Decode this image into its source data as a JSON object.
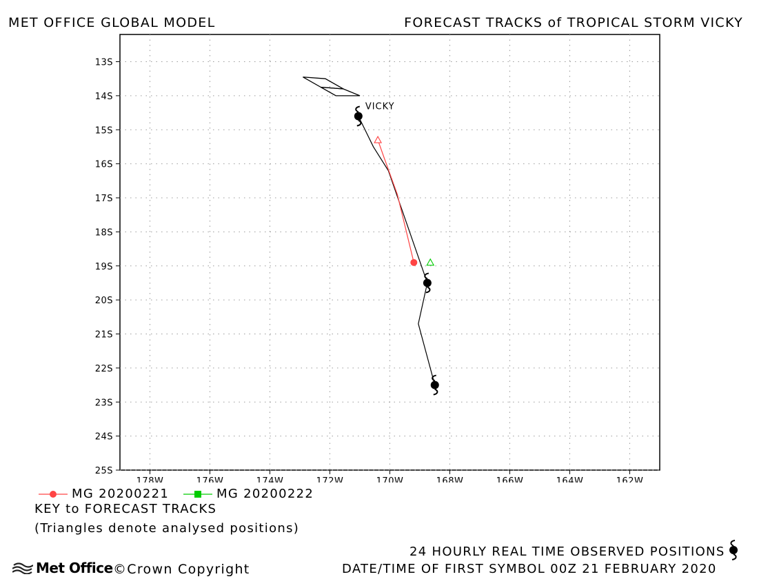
{
  "header": {
    "left_title": "MET OFFICE GLOBAL MODEL",
    "right_title": "FORECAST TRACKS of TROPICAL STORM VICKY"
  },
  "map": {
    "lon_range": [
      -179,
      -161
    ],
    "lat_range": [
      -25,
      -12.2
    ],
    "grid": "dotted",
    "lon_ticks": [
      {
        "value": -178,
        "label": "178W"
      },
      {
        "value": -176,
        "label": "176W"
      },
      {
        "value": -174,
        "label": "174W"
      },
      {
        "value": -172,
        "label": "172W"
      },
      {
        "value": -170,
        "label": "170W"
      },
      {
        "value": -168,
        "label": "168W"
      },
      {
        "value": -166,
        "label": "166W"
      },
      {
        "value": -164,
        "label": "164W"
      },
      {
        "value": -162,
        "label": "162W"
      }
    ],
    "lat_ticks": [
      {
        "value": -13,
        "label": "13S"
      },
      {
        "value": -14,
        "label": "14S"
      },
      {
        "value": -15,
        "label": "15S"
      },
      {
        "value": -16,
        "label": "16S"
      },
      {
        "value": -17,
        "label": "17S"
      },
      {
        "value": -18,
        "label": "18S"
      },
      {
        "value": -19,
        "label": "19S"
      },
      {
        "value": -20,
        "label": "20S"
      },
      {
        "value": -21,
        "label": "21S"
      },
      {
        "value": -22,
        "label": "22S"
      },
      {
        "value": -23,
        "label": "23S"
      },
      {
        "value": -24,
        "label": "24S"
      },
      {
        "value": -25,
        "label": "25S"
      }
    ],
    "storm_label": "VICKY",
    "coastline": [
      [
        -172.9,
        -13.45
      ],
      [
        -172.15,
        -13.5
      ],
      [
        -171.55,
        -13.8
      ],
      [
        -172.3,
        -13.75
      ],
      [
        -172.9,
        -13.45
      ]
    ],
    "coastline2": [
      [
        -172.3,
        -13.75
      ],
      [
        -171.55,
        -13.8
      ],
      [
        -171.0,
        -14.0
      ],
      [
        -171.8,
        -14.0
      ],
      [
        -172.3,
        -13.75
      ]
    ],
    "observed_track": [
      [
        -171.05,
        -14.6
      ],
      [
        -170.55,
        -15.5
      ],
      [
        -170.05,
        -16.2
      ],
      [
        -168.75,
        -19.5
      ],
      [
        -169.05,
        -20.7
      ],
      [
        -168.5,
        -22.5
      ]
    ],
    "observed_positions": [
      [
        -171.05,
        -14.6
      ],
      [
        -168.75,
        -19.5
      ],
      [
        -168.5,
        -22.5
      ]
    ],
    "forecast_tracks": [
      {
        "name": "MG 20200221",
        "color": "#ff4444",
        "marker": "circle",
        "analysed": [
          -170.4,
          -15.3
        ],
        "points": [
          [
            -170.4,
            -15.3
          ],
          [
            -170.2,
            -15.8
          ],
          [
            -169.75,
            -16.9
          ],
          [
            -169.2,
            -18.9
          ]
        ]
      },
      {
        "name": "MG 20200222",
        "color": "#00cc00",
        "marker": "square",
        "analysed": [
          -168.65,
          -18.9
        ],
        "points": []
      }
    ]
  },
  "legend": {
    "entries": [
      {
        "label": "MG 20200221",
        "color": "#ff4444",
        "marker": "circle"
      },
      {
        "label": "MG 20200222",
        "color": "#00cc00",
        "marker": "square"
      }
    ],
    "key_title": "KEY to FORECAST TRACKS",
    "key_note": "(Triangles denote analysed positions)"
  },
  "footer": {
    "observed_label": "24 HOURLY REAL TIME OBSERVED POSITIONS",
    "datetime_label": "DATE/TIME OF FIRST SYMBOL 00Z 21 FEBRUARY 2020",
    "brand": "Met Office",
    "copyright": "©Crown Copyright"
  }
}
